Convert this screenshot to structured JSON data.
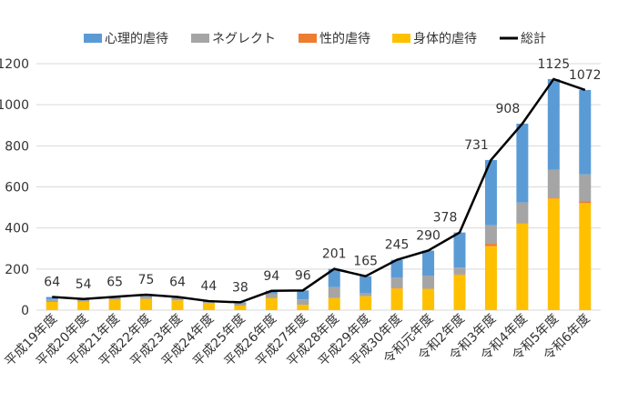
{
  "chart_data": {
    "type": "bar",
    "stacked": true,
    "categories": [
      "平成19年度",
      "平成20年度",
      "平成21年度",
      "平成22年度",
      "平成23年度",
      "平成24年度",
      "平成25年度",
      "平成26年度",
      "平成27年度",
      "平成28年度",
      "平成29年度",
      "平成30年度",
      "令和元年度",
      "令和2年度",
      "令和3年度",
      "令和4年度",
      "令和5年度",
      "令和6年度"
    ],
    "series": [
      {
        "name": "身体的虐待",
        "color": "#FFC000",
        "values": [
          40,
          42,
          50,
          55,
          48,
          34,
          22,
          58,
          26,
          59,
          68,
          105,
          104,
          171,
          311,
          422,
          543,
          521
        ]
      },
      {
        "name": "性的虐待",
        "color": "#ED7D31",
        "values": [
          2,
          0,
          0,
          0,
          0,
          0,
          0,
          0,
          0,
          0,
          0,
          3,
          0,
          3,
          12,
          3,
          5,
          10
        ]
      },
      {
        "name": "ネグレクト",
        "color": "#A5A5A5",
        "values": [
          10,
          8,
          10,
          12,
          10,
          6,
          10,
          22,
          26,
          53,
          16,
          50,
          64,
          33,
          90,
          99,
          135,
          130
        ]
      },
      {
        "name": "心理的虐待",
        "color": "#5B9BD5",
        "values": [
          12,
          4,
          5,
          8,
          6,
          4,
          6,
          14,
          44,
          89,
          81,
          87,
          122,
          171,
          318,
          384,
          442,
          411
        ]
      }
    ],
    "total": {
      "name": "総計",
      "color": "#000000",
      "values": [
        64,
        54,
        65,
        75,
        64,
        44,
        38,
        94,
        96,
        201,
        165,
        245,
        290,
        378,
        731,
        908,
        1125,
        1072
      ]
    },
    "legend_order": [
      "心理的虐待",
      "ネグレクト",
      "性的虐待",
      "身体的虐待",
      "総計"
    ],
    "legend": "top",
    "ylim": [
      0,
      1200
    ],
    "yticks": [
      0,
      200,
      400,
      600,
      800,
      1000,
      1200
    ],
    "grid": true
  }
}
